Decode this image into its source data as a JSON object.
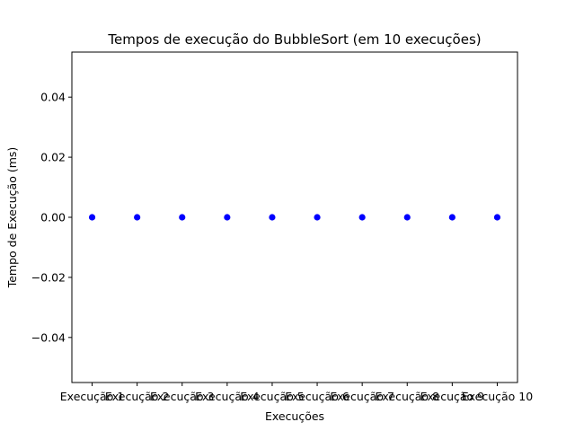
{
  "chart_data": {
    "type": "scatter",
    "title": "Tempos de execução do BubbleSort (em 10 execuções)",
    "xlabel": "Execuções",
    "ylabel": "Tempo de Execução (ms)",
    "categories": [
      "Execução 1",
      "Execução 2",
      "Execução 3",
      "Execução 4",
      "Execução 5",
      "Execução 6",
      "Execução 7",
      "Execução 8",
      "Execução 9",
      "Execução 10"
    ],
    "values": [
      0,
      0,
      0,
      0,
      0,
      0,
      0,
      0,
      0,
      0
    ],
    "ylim": [
      -0.055,
      0.055
    ],
    "yticks": [
      -0.04,
      -0.02,
      0.0,
      0.02,
      0.04
    ],
    "ytick_labels": [
      "−0.04",
      "−0.02",
      "0.00",
      "0.02",
      "0.04"
    ],
    "grid": false,
    "marker_color": "#0000ff"
  }
}
